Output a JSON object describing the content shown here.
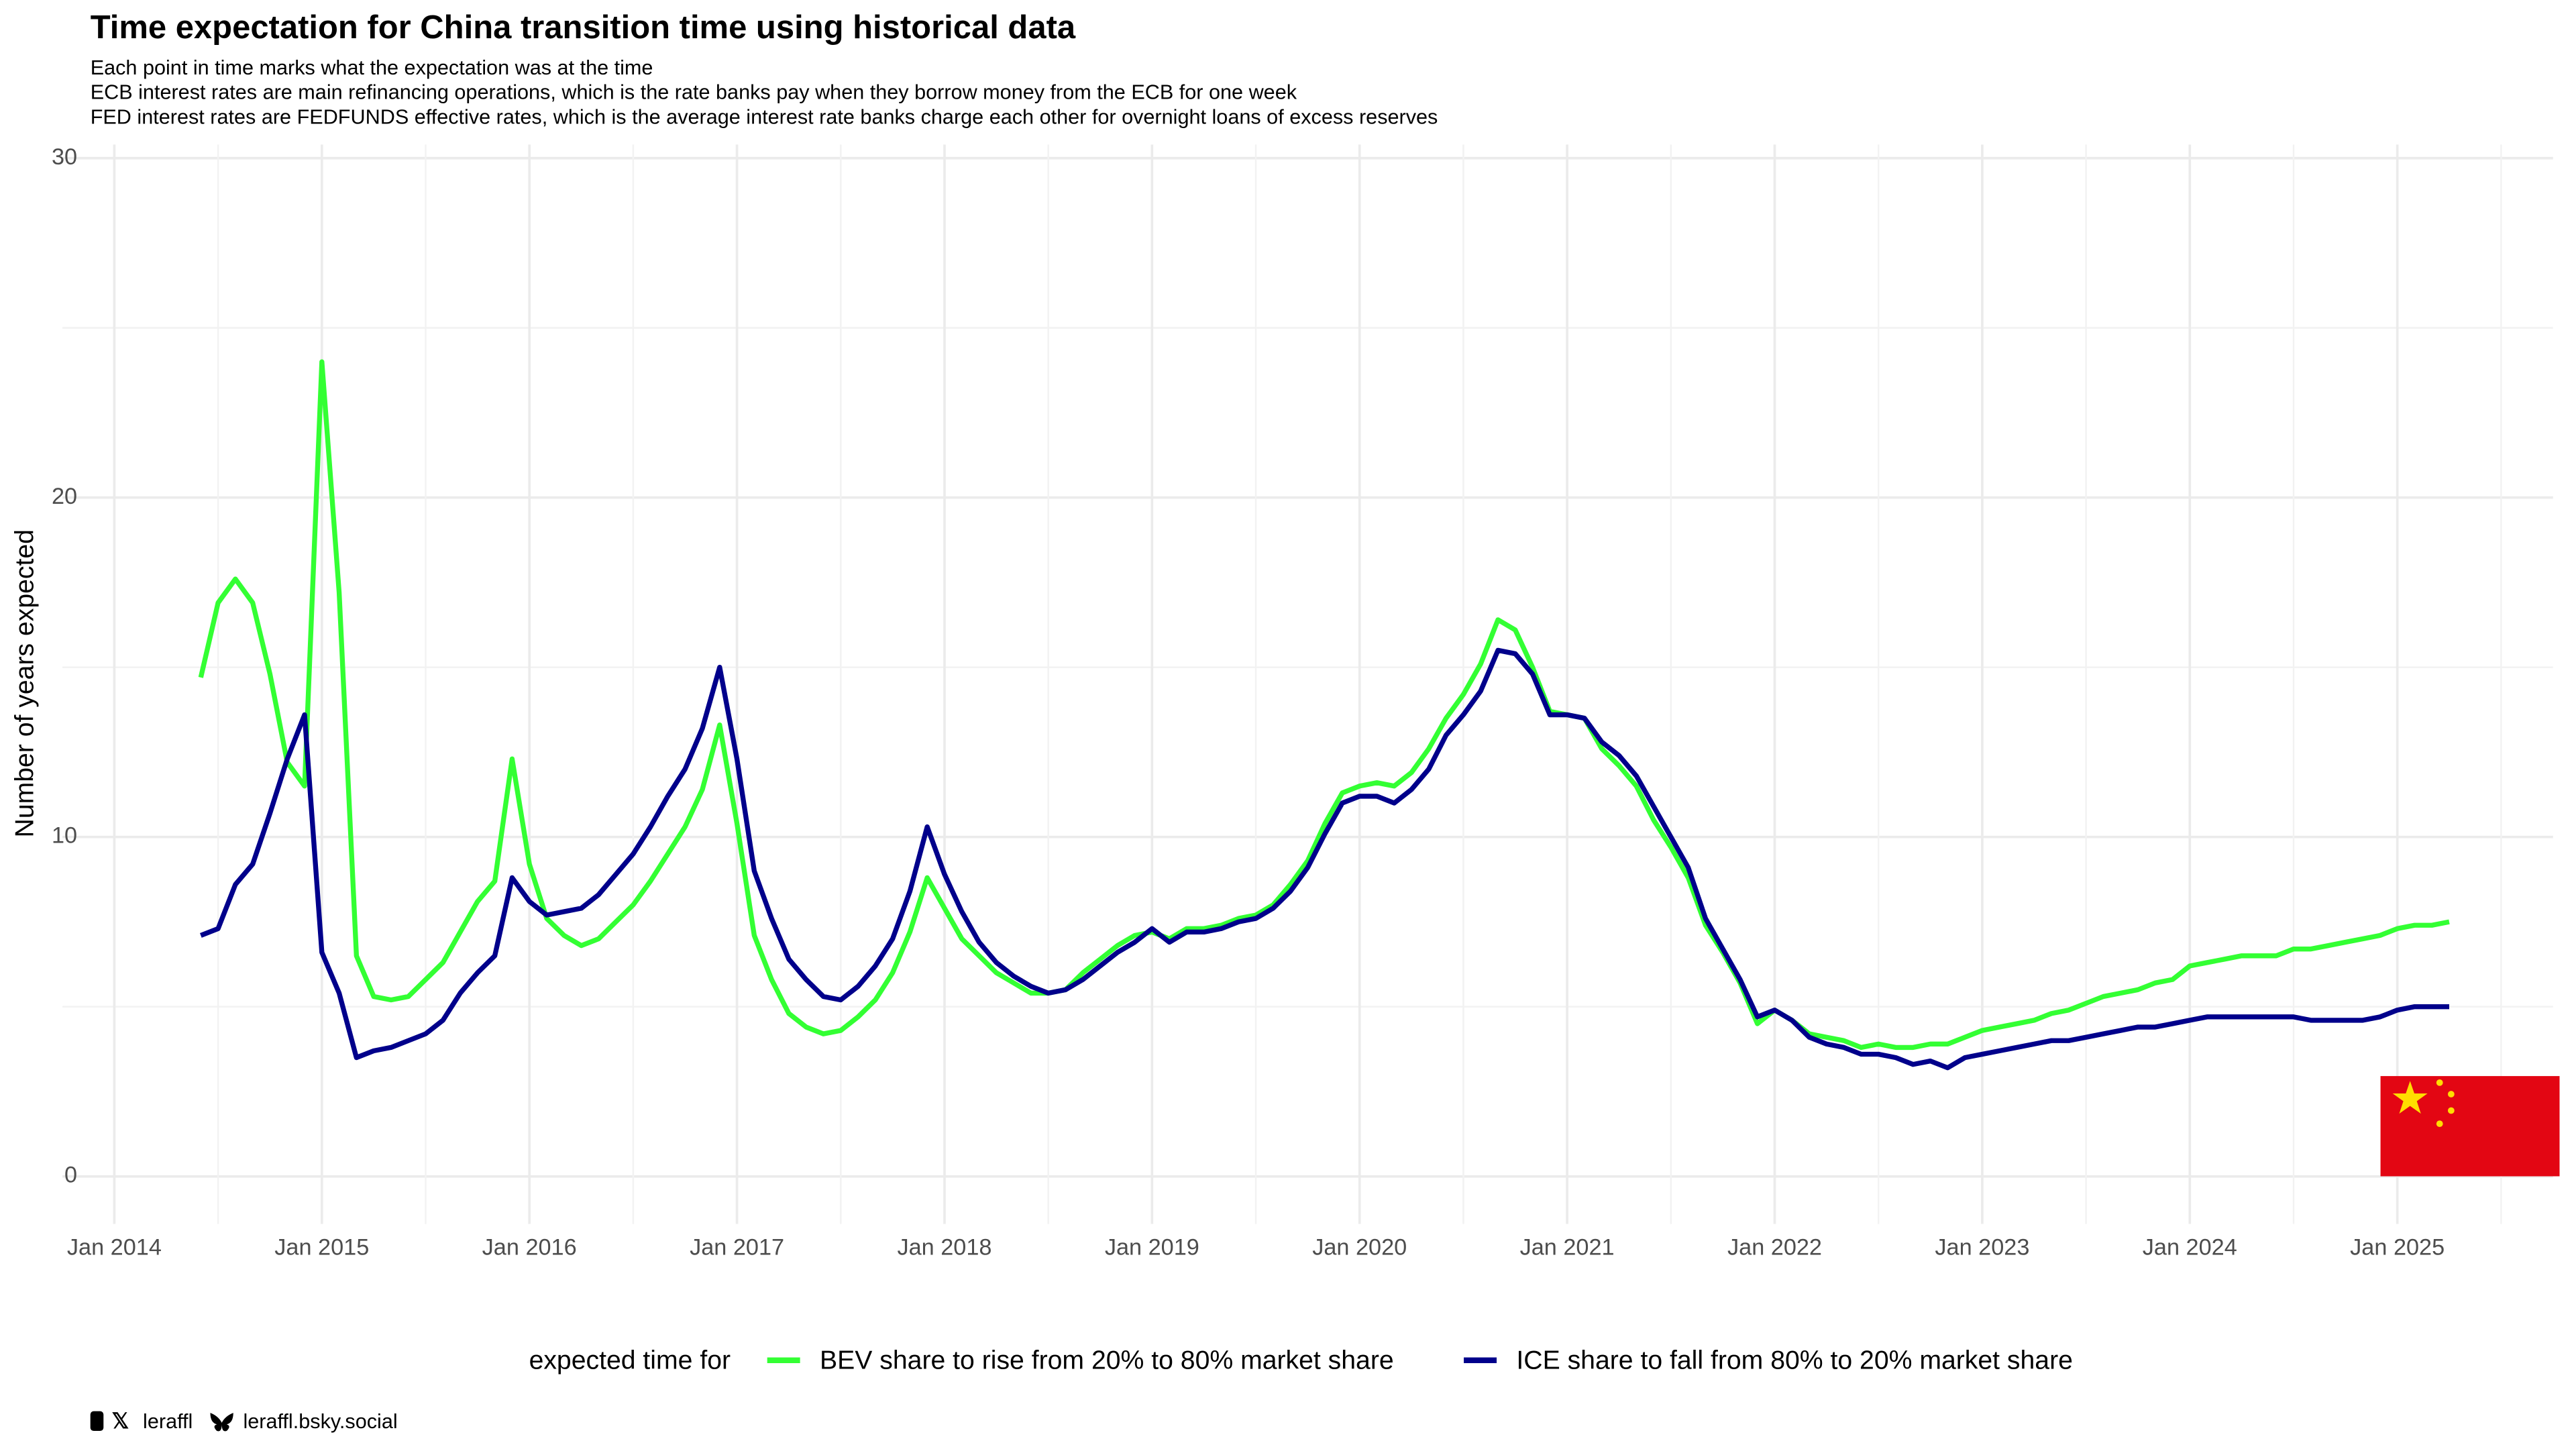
{
  "chart_data": {
    "type": "line",
    "title": "Time expectation for China transition time using historical data",
    "subtitle": [
      "Each point in time marks what the expectation was at the time",
      "ECB interest rates are main refinancing operations, which is the rate banks pay when they borrow money from the ECB for one week",
      "FED interest rates are FEDFUNDS effective rates, which is the average interest rate banks charge each other for overnight loans of excess reserves"
    ],
    "y_label": "Number of years expected",
    "legend_title": "expected time for",
    "legend_position": "bottom",
    "grid": true,
    "footer": [
      "leraffl",
      "leraffl.bsky.social"
    ],
    "xlim": [
      "2013-10",
      "2025-10"
    ],
    "xticks": [
      {
        "value": "2014-01",
        "label": "Jan 2014"
      },
      {
        "value": "2015-01",
        "label": "Jan 2015"
      },
      {
        "value": "2016-01",
        "label": "Jan 2016"
      },
      {
        "value": "2017-01",
        "label": "Jan 2017"
      },
      {
        "value": "2018-01",
        "label": "Jan 2018"
      },
      {
        "value": "2019-01",
        "label": "Jan 2019"
      },
      {
        "value": "2020-01",
        "label": "Jan 2020"
      },
      {
        "value": "2021-01",
        "label": "Jan 2021"
      },
      {
        "value": "2022-01",
        "label": "Jan 2022"
      },
      {
        "value": "2023-01",
        "label": "Jan 2023"
      },
      {
        "value": "2024-01",
        "label": "Jan 2024"
      },
      {
        "value": "2025-01",
        "label": "Jan 2025"
      }
    ],
    "ylim": [
      -1.4,
      30.4
    ],
    "yticks": [
      0,
      10,
      20,
      30
    ],
    "x": [
      "2014-06",
      "2014-07",
      "2014-08",
      "2014-09",
      "2014-10",
      "2014-11",
      "2014-12",
      "2015-01",
      "2015-02",
      "2015-03",
      "2015-04",
      "2015-05",
      "2015-06",
      "2015-07",
      "2015-08",
      "2015-09",
      "2015-10",
      "2015-11",
      "2015-12",
      "2016-01",
      "2016-02",
      "2016-03",
      "2016-04",
      "2016-05",
      "2016-06",
      "2016-07",
      "2016-08",
      "2016-09",
      "2016-10",
      "2016-11",
      "2016-12",
      "2017-01",
      "2017-02",
      "2017-03",
      "2017-04",
      "2017-05",
      "2017-06",
      "2017-07",
      "2017-08",
      "2017-09",
      "2017-10",
      "2017-11",
      "2017-12",
      "2018-01",
      "2018-02",
      "2018-03",
      "2018-04",
      "2018-05",
      "2018-06",
      "2018-07",
      "2018-08",
      "2018-09",
      "2018-10",
      "2018-11",
      "2018-12",
      "2019-01",
      "2019-02",
      "2019-03",
      "2019-04",
      "2019-05",
      "2019-06",
      "2019-07",
      "2019-08",
      "2019-09",
      "2019-10",
      "2019-11",
      "2019-12",
      "2020-01",
      "2020-02",
      "2020-03",
      "2020-04",
      "2020-05",
      "2020-06",
      "2020-07",
      "2020-08",
      "2020-09",
      "2020-10",
      "2020-11",
      "2020-12",
      "2021-01",
      "2021-02",
      "2021-03",
      "2021-04",
      "2021-05",
      "2021-06",
      "2021-07",
      "2021-08",
      "2021-09",
      "2021-10",
      "2021-11",
      "2021-12",
      "2022-01",
      "2022-02",
      "2022-03",
      "2022-04",
      "2022-05",
      "2022-06",
      "2022-07",
      "2022-08",
      "2022-09",
      "2022-10",
      "2022-11",
      "2022-12",
      "2023-01",
      "2023-02",
      "2023-03",
      "2023-04",
      "2023-05",
      "2023-06",
      "2023-07",
      "2023-08",
      "2023-09",
      "2023-10",
      "2023-11",
      "2023-12",
      "2024-01",
      "2024-02",
      "2024-03",
      "2024-04",
      "2024-05",
      "2024-06",
      "2024-07",
      "2024-08",
      "2024-09",
      "2024-10",
      "2024-11",
      "2024-12",
      "2025-01",
      "2025-02",
      "2025-03",
      "2025-04"
    ],
    "series": [
      {
        "name": "BEV share to rise from 20% to 80% market share",
        "color": "#33ff33",
        "values": [
          14.7,
          16.9,
          17.6,
          16.9,
          14.8,
          12.2,
          11.5,
          24.0,
          17.2,
          6.5,
          5.3,
          5.2,
          5.3,
          5.8,
          6.3,
          7.2,
          8.1,
          8.7,
          12.3,
          9.2,
          7.6,
          7.1,
          6.8,
          7.0,
          7.5,
          8.0,
          8.7,
          9.5,
          10.3,
          11.4,
          13.3,
          10.4,
          7.1,
          5.8,
          4.8,
          4.4,
          4.2,
          4.3,
          4.7,
          5.2,
          6.0,
          7.2,
          8.8,
          7.9,
          7.0,
          6.5,
          6.0,
          5.7,
          5.4,
          5.4,
          5.5,
          6.0,
          6.4,
          6.8,
          7.1,
          7.2,
          7.0,
          7.3,
          7.3,
          7.4,
          7.6,
          7.7,
          8.0,
          8.6,
          9.3,
          10.4,
          11.3,
          11.5,
          11.6,
          11.5,
          11.9,
          12.6,
          13.5,
          14.2,
          15.1,
          16.4,
          16.1,
          15.0,
          13.7,
          13.6,
          13.5,
          12.6,
          12.1,
          11.5,
          10.5,
          9.7,
          8.8,
          7.4,
          6.6,
          5.7,
          4.5,
          4.9,
          4.6,
          4.2,
          4.1,
          4.0,
          3.8,
          3.9,
          3.8,
          3.8,
          3.9,
          3.9,
          4.1,
          4.3,
          4.4,
          4.5,
          4.6,
          4.8,
          4.9,
          5.1,
          5.3,
          5.4,
          5.5,
          5.7,
          5.8,
          6.2,
          6.3,
          6.4,
          6.5,
          6.5,
          6.5,
          6.7,
          6.7,
          6.8,
          6.9,
          7.0,
          7.1,
          7.3,
          7.4,
          7.4,
          7.5
        ]
      },
      {
        "name": "ICE share to fall from 80% to 20% market share",
        "color": "#00008b",
        "values": [
          7.1,
          7.3,
          8.6,
          9.2,
          10.7,
          12.3,
          13.6,
          6.6,
          5.4,
          3.5,
          3.7,
          3.8,
          4.0,
          4.2,
          4.6,
          5.4,
          6.0,
          6.5,
          8.8,
          8.1,
          7.7,
          7.8,
          7.9,
          8.3,
          8.9,
          9.5,
          10.3,
          11.2,
          12.0,
          13.2,
          15.0,
          12.3,
          9.0,
          7.6,
          6.4,
          5.8,
          5.3,
          5.2,
          5.6,
          6.2,
          7.0,
          8.4,
          10.3,
          8.9,
          7.8,
          6.9,
          6.3,
          5.9,
          5.6,
          5.4,
          5.5,
          5.8,
          6.2,
          6.6,
          6.9,
          7.3,
          6.9,
          7.2,
          7.2,
          7.3,
          7.5,
          7.6,
          7.9,
          8.4,
          9.1,
          10.1,
          11.0,
          11.2,
          11.2,
          11.0,
          11.4,
          12.0,
          13.0,
          13.6,
          14.3,
          15.5,
          15.4,
          14.8,
          13.6,
          13.6,
          13.5,
          12.8,
          12.4,
          11.8,
          10.9,
          10.0,
          9.1,
          7.6,
          6.7,
          5.8,
          4.7,
          4.9,
          4.6,
          4.1,
          3.9,
          3.8,
          3.6,
          3.6,
          3.5,
          3.3,
          3.4,
          3.2,
          3.5,
          3.6,
          3.7,
          3.8,
          3.9,
          4.0,
          4.0,
          4.1,
          4.2,
          4.3,
          4.4,
          4.4,
          4.5,
          4.6,
          4.7,
          4.7,
          4.7,
          4.7,
          4.7,
          4.7,
          4.6,
          4.6,
          4.6,
          4.6,
          4.7,
          4.9,
          5.0,
          5.0,
          5.0
        ]
      }
    ]
  }
}
